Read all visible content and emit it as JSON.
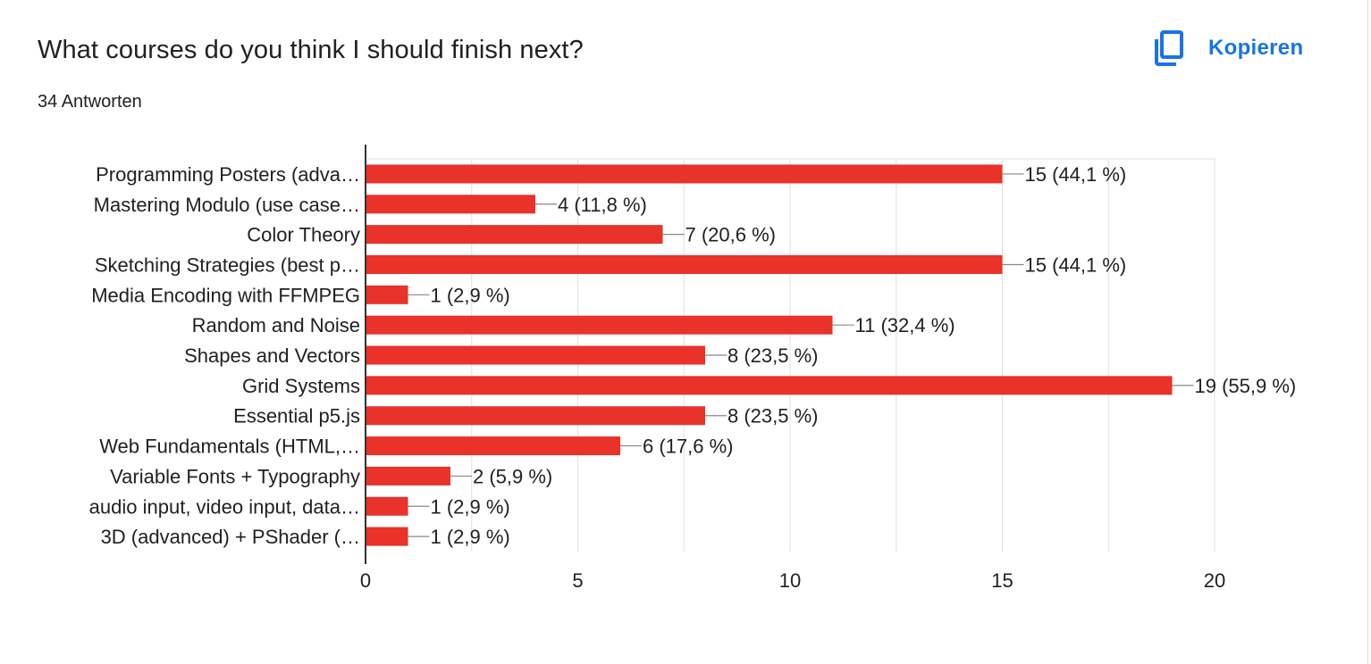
{
  "header": {
    "question": "What courses do you think I should finish next?",
    "responses": "34 Antworten",
    "copy_label": "Kopieren",
    "copy_icon": "copy-icon"
  },
  "colors": {
    "bar": "#e8322a",
    "accent": "#1a73e8",
    "grid": "#e0e0e0",
    "axis": "#333333"
  },
  "chart_data": {
    "type": "bar",
    "orientation": "horizontal",
    "categories": [
      "Programming Posters (adva…",
      "Mastering Modulo (use case…",
      "Color Theory",
      "Sketching Strategies (best p…",
      "Media Encoding with FFMPEG",
      "Random and Noise",
      "Shapes and Vectors",
      "Grid Systems",
      "Essential p5.js",
      "Web Fundamentals (HTML,…",
      "Variable Fonts + Typography",
      "audio input, video input, data…",
      "3D (advanced) + PShader (…"
    ],
    "values": [
      15,
      4,
      7,
      15,
      1,
      11,
      8,
      19,
      8,
      6,
      2,
      1,
      1
    ],
    "data_labels": [
      "15 (44,1 %)",
      "4 (11,8 %)",
      "7 (20,6 %)",
      "15 (44,1 %)",
      "1 (2,9 %)",
      "11 (32,4 %)",
      "8 (23,5 %)",
      "19 (55,9 %)",
      "8 (23,5 %)",
      "6 (17,6 %)",
      "2 (5,9 %)",
      "1 (2,9 %)",
      "1 (2,9 %)"
    ],
    "xlim": [
      0,
      20
    ],
    "xticks": [
      0,
      5,
      10,
      15,
      20
    ],
    "grid": true
  }
}
